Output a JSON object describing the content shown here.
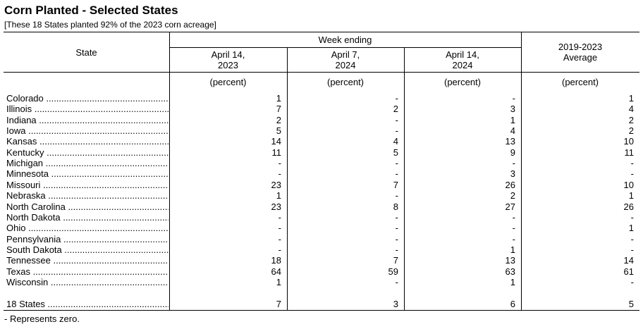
{
  "header": {
    "title": "Corn Planted - Selected States",
    "subtitle": "[These 18 States planted 92% of the 2023 corn acreage]"
  },
  "table": {
    "state_header": "State",
    "group_header": "Week ending",
    "columns": [
      "April 14,\n2023",
      "April 7,\n2024",
      "April 14,\n2024",
      "2019-2023\nAverage"
    ],
    "units": [
      "(percent)",
      "(percent)",
      "(percent)",
      "(percent)"
    ],
    "rows": [
      [
        "Colorado",
        1,
        "-",
        "-",
        1
      ],
      [
        "Illinois",
        7,
        2,
        3,
        4
      ],
      [
        "Indiana",
        2,
        "-",
        1,
        2
      ],
      [
        "Iowa",
        5,
        "-",
        4,
        2
      ],
      [
        "Kansas",
        14,
        4,
        13,
        10
      ],
      [
        "Kentucky",
        11,
        5,
        9,
        11
      ],
      [
        "Michigan",
        "-",
        "-",
        "-",
        "-"
      ],
      [
        "Minnesota",
        "-",
        "-",
        3,
        "-"
      ],
      [
        "Missouri",
        23,
        7,
        26,
        10
      ],
      [
        "Nebraska",
        1,
        "-",
        2,
        1
      ],
      [
        "North Carolina",
        23,
        8,
        27,
        26
      ],
      [
        "North Dakota",
        "-",
        "-",
        "-",
        "-"
      ],
      [
        "Ohio",
        "-",
        "-",
        "-",
        1
      ],
      [
        "Pennsylvania",
        "-",
        "-",
        "-",
        "-"
      ],
      [
        "South Dakota",
        "-",
        "-",
        1,
        "-"
      ],
      [
        "Tennessee",
        18,
        7,
        13,
        14
      ],
      [
        "Texas",
        64,
        59,
        63,
        61
      ],
      [
        "Wisconsin",
        1,
        "-",
        1,
        "-"
      ]
    ],
    "total": [
      "18 States",
      7,
      3,
      6,
      5
    ]
  },
  "footnote": "- Represents zero."
}
